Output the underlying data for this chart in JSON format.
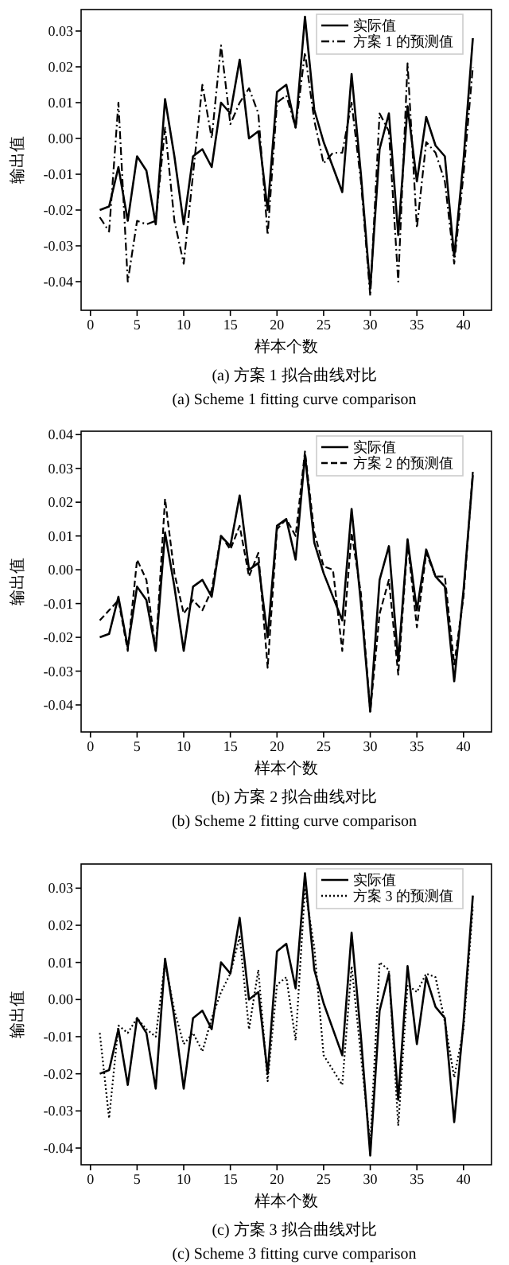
{
  "chart_data": [
    {
      "type": "line",
      "xlabel": "样本个数",
      "ylabel": "输出值",
      "x": [
        1,
        2,
        3,
        4,
        5,
        6,
        7,
        8,
        9,
        10,
        11,
        12,
        13,
        14,
        15,
        16,
        17,
        18,
        19,
        20,
        21,
        22,
        23,
        24,
        25,
        26,
        27,
        28,
        29,
        30,
        31,
        32,
        33,
        34,
        35,
        36,
        37,
        38,
        39,
        40,
        41
      ],
      "xlim": [
        -1,
        43
      ],
      "ylim": [
        -0.048,
        0.036
      ],
      "xticks": [
        0,
        5,
        10,
        15,
        20,
        25,
        30,
        35,
        40
      ],
      "yticks": [
        {
          "value": -0.04,
          "label": "-0.04"
        },
        {
          "value": -0.03,
          "label": "-0.03"
        },
        {
          "value": -0.02,
          "label": "-0.02"
        },
        {
          "value": -0.01,
          "label": "-0.01"
        },
        {
          "value": 0,
          "label": "0.00"
        },
        {
          "value": 0.01,
          "label": "0.01"
        },
        {
          "value": 0.02,
          "label": "0.02"
        },
        {
          "value": 0.03,
          "label": "0.03"
        }
      ],
      "legend": "top right",
      "annotations": [
        "(a) 方案 1 拟合曲线对比",
        "(a) Scheme 1 fitting curve comparison"
      ],
      "series": [
        {
          "name": "实际值",
          "color": "#000000",
          "line_style": "solid",
          "values": [
            -0.02,
            -0.019,
            -0.008,
            -0.023,
            -0.005,
            -0.009,
            -0.024,
            0.011,
            -0.005,
            -0.024,
            -0.005,
            -0.003,
            -0.008,
            0.01,
            0.007,
            0.022,
            0.0,
            0.002,
            -0.02,
            0.013,
            0.015,
            0.003,
            0.034,
            0.008,
            -0.001,
            -0.008,
            -0.015,
            0.018,
            -0.01,
            -0.042,
            -0.003,
            0.007,
            -0.027,
            0.009,
            -0.012,
            0.006,
            -0.002,
            -0.005,
            -0.033,
            -0.006,
            0.028
          ]
        },
        {
          "name": "方案 1 的预测值",
          "color": "#000000",
          "line_style": "dashdot",
          "values": [
            -0.022,
            -0.026,
            0.01,
            -0.04,
            -0.023,
            -0.024,
            -0.023,
            0.003,
            -0.023,
            -0.035,
            -0.01,
            0.015,
            0.0,
            0.026,
            0.004,
            0.01,
            0.014,
            0.007,
            -0.027,
            0.01,
            0.012,
            0.003,
            0.024,
            0.005,
            -0.007,
            -0.004,
            -0.004,
            0.01,
            -0.012,
            -0.044,
            0.007,
            0.002,
            -0.04,
            0.021,
            -0.025,
            -0.001,
            -0.004,
            -0.012,
            -0.035,
            -0.01,
            0.02
          ]
        }
      ]
    },
    {
      "type": "line",
      "xlabel": "样本个数",
      "ylabel": "输出值",
      "x": [
        1,
        2,
        3,
        4,
        5,
        6,
        7,
        8,
        9,
        10,
        11,
        12,
        13,
        14,
        15,
        16,
        17,
        18,
        19,
        20,
        21,
        22,
        23,
        24,
        25,
        26,
        27,
        28,
        29,
        30,
        31,
        32,
        33,
        34,
        35,
        36,
        37,
        38,
        39,
        40,
        41
      ],
      "xlim": [
        -1,
        43
      ],
      "ylim": [
        -0.048,
        0.041
      ],
      "xticks": [
        0,
        5,
        10,
        15,
        20,
        25,
        30,
        35,
        40
      ],
      "yticks": [
        {
          "value": -0.04,
          "label": "-0.04"
        },
        {
          "value": -0.03,
          "label": "-0.03"
        },
        {
          "value": -0.02,
          "label": "-0.02"
        },
        {
          "value": -0.01,
          "label": "-0.01"
        },
        {
          "value": 0,
          "label": "0.00"
        },
        {
          "value": 0.01,
          "label": "0.01"
        },
        {
          "value": 0.02,
          "label": "0.02"
        },
        {
          "value": 0.03,
          "label": "0.03"
        },
        {
          "value": 0.04,
          "label": "0.04"
        }
      ],
      "legend": "top right",
      "annotations": [
        "(b) 方案 2 拟合曲线对比",
        "(b) Scheme 2 fitting curve comparison"
      ],
      "series": [
        {
          "name": "实际值",
          "color": "#000000",
          "line_style": "solid",
          "values": [
            -0.02,
            -0.019,
            -0.008,
            -0.023,
            -0.005,
            -0.009,
            -0.024,
            0.011,
            -0.005,
            -0.024,
            -0.005,
            -0.003,
            -0.008,
            0.01,
            0.007,
            0.022,
            0.0,
            0.002,
            -0.02,
            0.013,
            0.015,
            0.003,
            0.034,
            0.008,
            -0.001,
            -0.008,
            -0.015,
            0.018,
            -0.01,
            -0.042,
            -0.003,
            0.007,
            -0.027,
            0.009,
            -0.012,
            0.006,
            -0.002,
            -0.005,
            -0.033,
            -0.006,
            0.028
          ]
        },
        {
          "name": "方案 2 的预测值",
          "color": "#000000",
          "line_style": "dashed",
          "values": [
            -0.015,
            -0.012,
            -0.009,
            -0.024,
            0.003,
            -0.003,
            -0.024,
            0.021,
            -0.001,
            -0.013,
            -0.009,
            -0.012,
            -0.006,
            0.01,
            0.006,
            0.013,
            -0.002,
            0.005,
            -0.029,
            0.012,
            0.015,
            0.01,
            0.035,
            0.011,
            0.001,
            0.0,
            -0.024,
            0.011,
            -0.007,
            -0.042,
            -0.013,
            -0.003,
            -0.031,
            0.008,
            -0.017,
            0.005,
            -0.002,
            -0.002,
            -0.028,
            -0.008,
            0.029
          ]
        }
      ]
    },
    {
      "type": "line",
      "xlabel": "样本个数",
      "ylabel": "输出值",
      "x": [
        1,
        2,
        3,
        4,
        5,
        6,
        7,
        8,
        9,
        10,
        11,
        12,
        13,
        14,
        15,
        16,
        17,
        18,
        19,
        20,
        21,
        22,
        23,
        24,
        25,
        26,
        27,
        28,
        29,
        30,
        31,
        32,
        33,
        34,
        35,
        36,
        37,
        38,
        39,
        40,
        41
      ],
      "xlim": [
        -1,
        43
      ],
      "ylim": [
        -0.0445,
        0.0365
      ],
      "xticks": [
        0,
        5,
        10,
        15,
        20,
        25,
        30,
        35,
        40
      ],
      "yticks": [
        {
          "value": -0.04,
          "label": "-0.04"
        },
        {
          "value": -0.03,
          "label": "-0.03"
        },
        {
          "value": -0.02,
          "label": "-0.02"
        },
        {
          "value": -0.01,
          "label": "-0.01"
        },
        {
          "value": 0,
          "label": "0.00"
        },
        {
          "value": 0.01,
          "label": "0.01"
        },
        {
          "value": 0.02,
          "label": "0.02"
        },
        {
          "value": 0.03,
          "label": "0.03"
        }
      ],
      "legend": "top right",
      "annotations": [
        "(c) 方案 3 拟合曲线对比",
        "(c) Scheme 3 fitting curve comparison"
      ],
      "series": [
        {
          "name": "实际值",
          "color": "#000000",
          "line_style": "solid",
          "values": [
            -0.02,
            -0.019,
            -0.008,
            -0.023,
            -0.005,
            -0.009,
            -0.024,
            0.011,
            -0.005,
            -0.024,
            -0.005,
            -0.003,
            -0.008,
            0.01,
            0.007,
            0.022,
            0.0,
            0.002,
            -0.02,
            0.013,
            0.015,
            0.003,
            0.034,
            0.008,
            -0.001,
            -0.008,
            -0.015,
            0.018,
            -0.01,
            -0.042,
            -0.003,
            0.007,
            -0.027,
            0.009,
            -0.012,
            0.006,
            -0.002,
            -0.005,
            -0.033,
            -0.006,
            0.028
          ]
        },
        {
          "name": "方案 3 的预测值",
          "color": "#000000",
          "line_style": "dotted",
          "values": [
            -0.009,
            -0.032,
            -0.007,
            -0.009,
            -0.005,
            -0.008,
            -0.01,
            0.01,
            -0.003,
            -0.012,
            -0.009,
            -0.014,
            -0.005,
            0.002,
            0.007,
            0.017,
            -0.008,
            0.008,
            -0.022,
            0.004,
            0.006,
            -0.011,
            0.03,
            0.014,
            -0.015,
            -0.019,
            -0.023,
            0.009,
            -0.015,
            -0.039,
            0.01,
            0.008,
            -0.034,
            0.004,
            0.002,
            0.007,
            0.006,
            -0.006,
            -0.021,
            -0.008,
            0.025
          ]
        }
      ]
    }
  ]
}
